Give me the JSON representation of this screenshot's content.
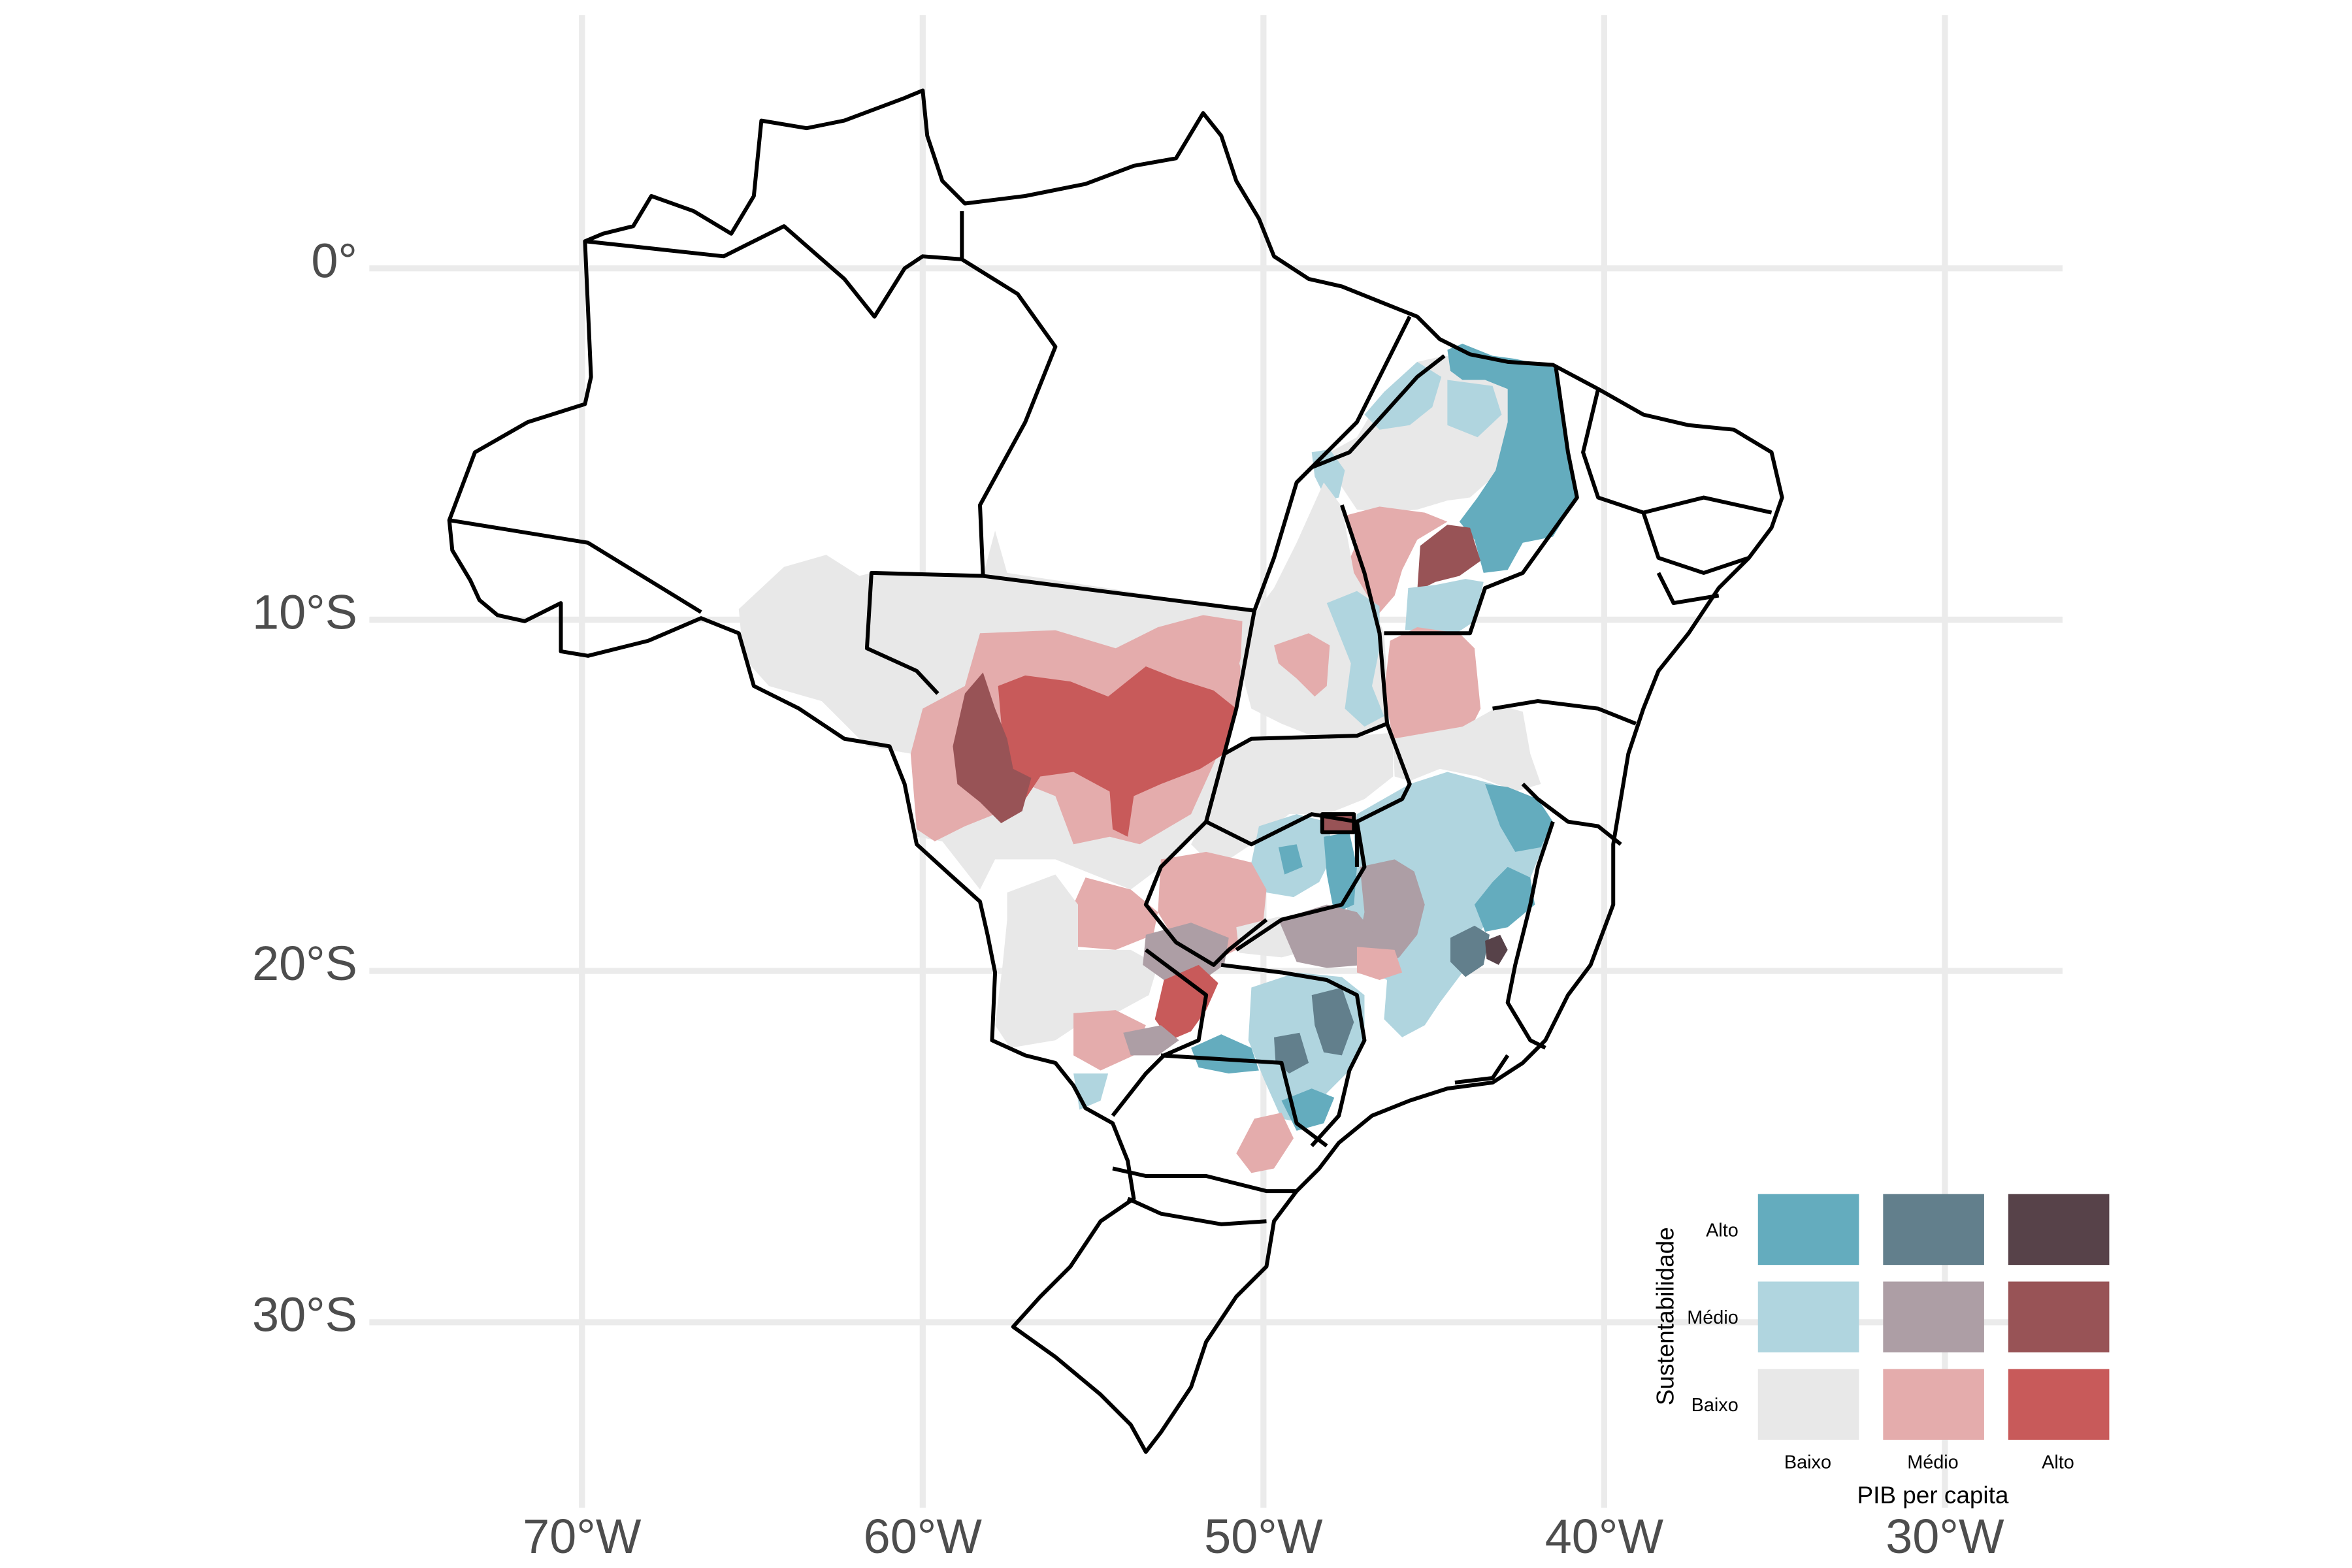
{
  "map": {
    "axes": {
      "x_ticks": [
        "70°W",
        "60°W",
        "50°W",
        "40°W",
        "30°W"
      ],
      "y_ticks": [
        "0°",
        "10°S",
        "20°S",
        "30°S"
      ]
    },
    "palette": {
      "baixo_baixo": "#e8e8e8",
      "baixo_medio": "#e4acac",
      "baixo_alto": "#c85a5a",
      "medio_baixo": "#b0d5df",
      "medio_medio": "#ad9ea5",
      "medio_alto": "#985356",
      "alto_baixo": "#64acbe",
      "alto_medio": "#627f8c",
      "alto_alto": "#574249"
    }
  },
  "legend": {
    "x_title": "PIB per capita",
    "y_title": "Sustentabilidade",
    "x_levels": [
      "Baixo",
      "Médio",
      "Alto"
    ],
    "y_levels": [
      "Baixo",
      "Médio",
      "Alto"
    ],
    "cells": [
      [
        "#e8e8e8",
        "#e4acac",
        "#c85a5a"
      ],
      [
        "#b0d5df",
        "#ad9ea5",
        "#985356"
      ],
      [
        "#64acbe",
        "#627f8c",
        "#574249"
      ]
    ]
  }
}
